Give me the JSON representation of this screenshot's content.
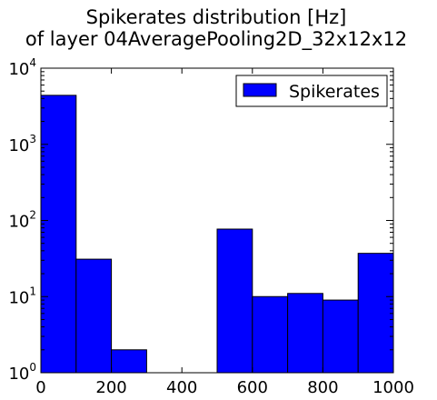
{
  "chart_data": {
    "type": "bar",
    "title": [
      "Spikerates distribution [Hz]",
      "of layer 04AveragePooling2D_32x12x12"
    ],
    "xlabel": "",
    "ylabel": "",
    "x_ticks": [
      "0",
      "200",
      "400",
      "600",
      "800",
      "1000"
    ],
    "x_tick_values": [
      0,
      200,
      400,
      600,
      800,
      1000
    ],
    "xlim": [
      0,
      1000
    ],
    "yscale": "log",
    "ylim": [
      1,
      10000
    ],
    "y_tick_exponents": [
      "0",
      "1",
      "2",
      "3",
      "4"
    ],
    "bin_edges": [
      0,
      100,
      200,
      300,
      400,
      500,
      600,
      700,
      800,
      900,
      1000
    ],
    "series": [
      {
        "name": "Spikerates",
        "color": "#0000ff",
        "values": [
          4400,
          31,
          2,
          0,
          0,
          77,
          10,
          11,
          9,
          37
        ]
      }
    ],
    "legend": {
      "position": "top-right"
    },
    "grid": false
  }
}
